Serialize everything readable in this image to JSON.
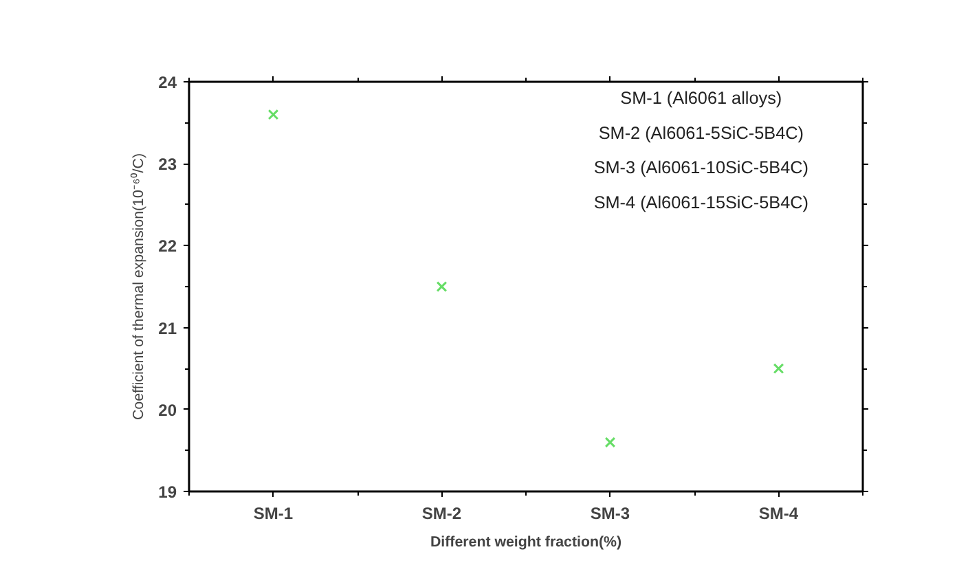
{
  "chart_data": {
    "type": "scatter",
    "categories": [
      "SM-1",
      "SM-2",
      "SM-3",
      "SM-4"
    ],
    "series": [
      {
        "color": "#66dd66",
        "values": [
          23.6,
          21.5,
          19.6,
          20.5
        ]
      }
    ],
    "ylim": [
      19,
      24
    ],
    "yticks": [
      19,
      20,
      21,
      22,
      23,
      24
    ],
    "xlabel": "Different weight fraction(%)",
    "ylabel": "Coefficient of thermal expansion(10⁻⁶⁰/C)",
    "annotations": [
      "SM-1 (Al6061 alloys)",
      "SM-2 (Al6061-5SiC-5B4C)",
      "SM-3 (Al6061-10SiC-5B4C)",
      "SM-4 (Al6061-15SiC-5B4C)"
    ],
    "marker": "cross",
    "grid": false
  }
}
